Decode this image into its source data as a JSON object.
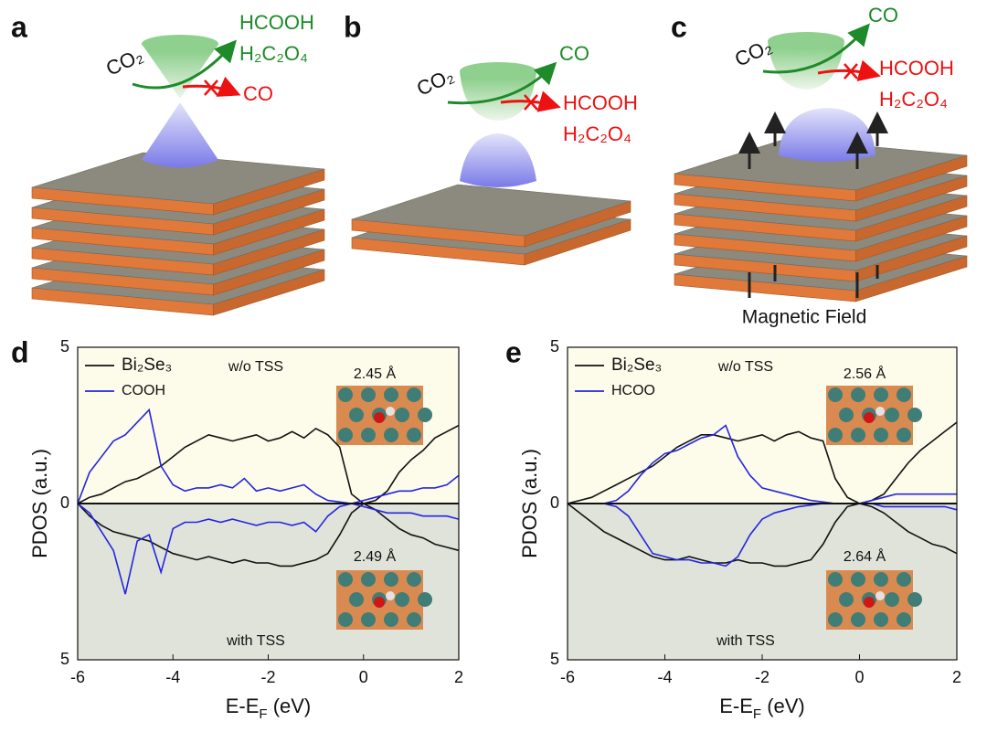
{
  "schematic": {
    "panels": [
      {
        "label": "a",
        "reactant": "CO₂",
        "favored": [
          "HCOOH",
          "H₂C₂O₄"
        ],
        "suppressed": [
          "CO"
        ]
      },
      {
        "label": "b",
        "reactant": "CO₂",
        "favored": [
          "CO"
        ],
        "suppressed": [
          "HCOOH",
          "H₂C₂O₄"
        ]
      },
      {
        "label": "c",
        "reactant": "CO₂",
        "favored": [
          "CO"
        ],
        "suppressed": [
          "HCOOH",
          "H₂C₂O₄"
        ]
      }
    ],
    "field_label": "Magnetic Field"
  },
  "chart_data": [
    {
      "type": "line",
      "panel_label": "d",
      "ylabel": "PDOS (a.u.)",
      "xlabel": [
        "E-E",
        "F",
        " (eV)"
      ],
      "xlim": [
        -6,
        2
      ],
      "xticks": [
        -6,
        -4,
        -2,
        0,
        2
      ],
      "ylim": [
        -5,
        5
      ],
      "yticks": [
        {
          "value": -5,
          "label": "5"
        },
        0,
        5
      ],
      "annotations": [
        "w/o TSS",
        "with TSS",
        "2.45 Å",
        "2.49 Å"
      ],
      "x": [
        -6,
        -5.75,
        -5.5,
        -5.25,
        -5,
        -4.75,
        -4.5,
        -4.25,
        -4,
        -3.75,
        -3.5,
        -3.25,
        -3,
        -2.75,
        -2.5,
        -2.25,
        -2,
        -1.75,
        -1.5,
        -1.25,
        -1,
        -0.75,
        -0.5,
        -0.25,
        0,
        0.25,
        0.5,
        0.75,
        1,
        1.25,
        1.5,
        1.75,
        2
      ],
      "series": [
        {
          "name": "Bi₂Se₃",
          "color": "#111111",
          "values": [
            0,
            0.2,
            0.3,
            0.5,
            0.7,
            0.8,
            1.0,
            1.2,
            1.5,
            1.8,
            2.0,
            2.2,
            2.1,
            2.0,
            2.1,
            2.2,
            2.0,
            2.1,
            2.3,
            2.1,
            2.4,
            2.2,
            1.8,
            0.3,
            0,
            0.1,
            0.4,
            1.0,
            1.4,
            1.7,
            2.1,
            2.3,
            2.5
          ],
          "down_values": [
            0,
            -0.4,
            -0.7,
            -0.9,
            -1.0,
            -1.1,
            -1.2,
            -1.4,
            -1.6,
            -1.7,
            -1.8,
            -1.7,
            -1.8,
            -1.9,
            -1.8,
            -1.9,
            -1.9,
            -2.0,
            -2.0,
            -1.9,
            -1.8,
            -1.6,
            -1.0,
            -0.3,
            0,
            -0.2,
            -0.5,
            -0.8,
            -1.0,
            -1.1,
            -1.3,
            -1.4,
            -1.5
          ]
        },
        {
          "name": "COOH",
          "color": "#2525e0",
          "values": [
            0,
            1.0,
            1.5,
            2.0,
            2.2,
            2.6,
            3.0,
            1.2,
            0.6,
            0.4,
            0.5,
            0.5,
            0.6,
            0.5,
            0.8,
            0.4,
            0.5,
            0.4,
            0.5,
            0.6,
            0.3,
            0.1,
            0.05,
            0,
            0.1,
            0.2,
            0.3,
            0.4,
            0.4,
            0.5,
            0.5,
            0.6,
            0.9
          ],
          "down_values": [
            0,
            -0.3,
            -0.9,
            -1.5,
            -2.9,
            -1.2,
            -1.0,
            -2.2,
            -0.8,
            -0.6,
            -0.6,
            -0.5,
            -0.6,
            -0.5,
            -0.6,
            -0.7,
            -0.6,
            -0.6,
            -0.7,
            -0.6,
            -0.9,
            -0.4,
            -0.1,
            0,
            -0.1,
            -0.2,
            -0.3,
            -0.3,
            -0.3,
            -0.4,
            -0.4,
            -0.4,
            -0.5
          ]
        }
      ]
    },
    {
      "type": "line",
      "panel_label": "e",
      "ylabel": "PDOS (a.u.)",
      "xlabel": [
        "E-E",
        "F",
        " (eV)"
      ],
      "xlim": [
        -6,
        2
      ],
      "xticks": [
        -6,
        -4,
        -2,
        0,
        2
      ],
      "ylim": [
        -5,
        5
      ],
      "yticks": [
        {
          "value": -5,
          "label": "5"
        },
        0,
        5
      ],
      "annotations": [
        "w/o TSS",
        "with TSS",
        "2.56 Å",
        "2.64 Å"
      ],
      "x": [
        -6,
        -5.75,
        -5.5,
        -5.25,
        -5,
        -4.75,
        -4.5,
        -4.25,
        -4,
        -3.75,
        -3.5,
        -3.25,
        -3,
        -2.75,
        -2.5,
        -2.25,
        -2,
        -1.75,
        -1.5,
        -1.25,
        -1,
        -0.75,
        -0.5,
        -0.25,
        0,
        0.25,
        0.5,
        0.75,
        1,
        1.25,
        1.5,
        1.75,
        2
      ],
      "series": [
        {
          "name": "Bi₂Se₃",
          "color": "#111111",
          "values": [
            0,
            0.1,
            0.2,
            0.4,
            0.6,
            0.8,
            1.0,
            1.2,
            1.5,
            1.8,
            2.0,
            2.2,
            2.2,
            2.1,
            2.0,
            2.1,
            2.2,
            2.0,
            2.2,
            2.3,
            2.1,
            2.0,
            0.8,
            0.2,
            0,
            0.1,
            0.3,
            0.8,
            1.3,
            1.7,
            2.0,
            2.3,
            2.6
          ],
          "down_values": [
            0,
            -0.3,
            -0.6,
            -0.9,
            -1.1,
            -1.3,
            -1.5,
            -1.7,
            -1.8,
            -1.8,
            -1.7,
            -1.8,
            -1.9,
            -1.9,
            -1.8,
            -1.9,
            -1.9,
            -2.0,
            -2.0,
            -1.9,
            -1.8,
            -1.3,
            -0.6,
            -0.1,
            0,
            -0.1,
            -0.3,
            -0.6,
            -0.9,
            -1.1,
            -1.3,
            -1.4,
            -1.6
          ]
        },
        {
          "name": "HCOO",
          "color": "#2525e0",
          "values": [
            0,
            0,
            0,
            0,
            0.1,
            0.4,
            0.9,
            1.3,
            1.6,
            1.7,
            1.9,
            2.1,
            2.2,
            2.5,
            1.5,
            0.9,
            0.5,
            0.4,
            0.3,
            0.2,
            0.1,
            0.05,
            0,
            0,
            0,
            0.1,
            0.2,
            0.3,
            0.3,
            0.3,
            0.3,
            0.3,
            0.3
          ],
          "down_values": [
            0,
            0,
            0,
            0,
            -0.1,
            -0.4,
            -1.0,
            -1.6,
            -1.7,
            -1.8,
            -1.8,
            -1.9,
            -1.9,
            -2.0,
            -1.7,
            -1.0,
            -0.5,
            -0.3,
            -0.2,
            -0.1,
            -0.05,
            0,
            0,
            0,
            0,
            0,
            -0.1,
            -0.1,
            -0.1,
            -0.1,
            -0.1,
            -0.1,
            -0.2
          ]
        }
      ]
    }
  ]
}
